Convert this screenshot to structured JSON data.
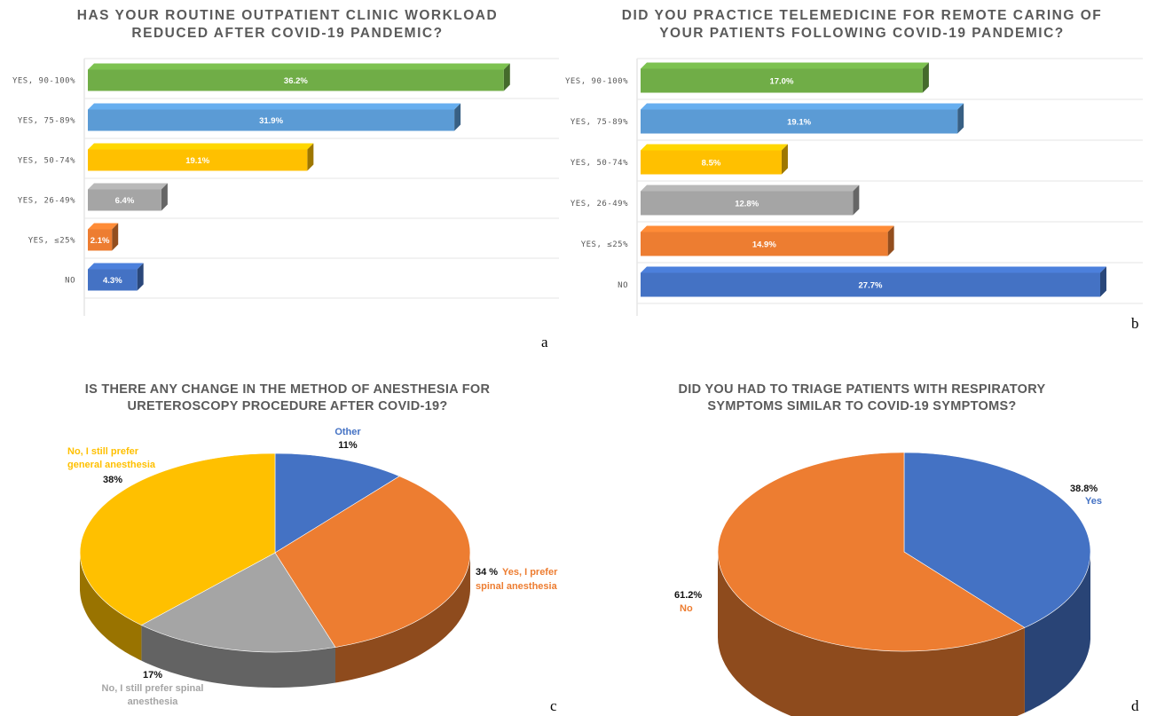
{
  "panels": {
    "a": "a",
    "b": "b",
    "c": "c",
    "d": "d"
  },
  "chart_data": [
    {
      "type": "bar",
      "orientation": "horizontal",
      "title_lines": [
        "HAS YOUR ROUTINE OUTPATIENT CLINIC WORKLOAD",
        "REDUCED AFTER COVID-19 PANDEMIC?"
      ],
      "categories": [
        "YES, 90-100%",
        "YES, 75-89%",
        "YES, 50-74%",
        "YES, 26-49%",
        "YES, ≤25%",
        "NO"
      ],
      "values": [
        36.2,
        31.9,
        19.1,
        6.4,
        2.1,
        4.3
      ],
      "value_labels": [
        "36.2%",
        "31.9%",
        "19.1%",
        "6.4%",
        "2.1%",
        "4.3%"
      ],
      "colors": [
        "#70ad47",
        "#5b9bd5",
        "#ffc000",
        "#a5a5a5",
        "#ed7d31",
        "#4472c4"
      ],
      "xlim": [
        0,
        40
      ],
      "grid": true,
      "legend": "none"
    },
    {
      "type": "bar",
      "orientation": "horizontal",
      "title_lines": [
        "DID YOU PRACTICE TELEMEDICINE FOR REMOTE CARING OF",
        "YOUR PATIENTS FOLLOWING COVID-19 PANDEMIC?"
      ],
      "categories": [
        "YES, 90-100%",
        "YES, 75-89%",
        "YES, 50-74%",
        "YES, 26-49%",
        "YES, ≤25%",
        "NO"
      ],
      "values": [
        17.0,
        19.1,
        8.5,
        12.8,
        14.9,
        27.7
      ],
      "value_labels": [
        "17.0%",
        "19.1%",
        "8.5%",
        "12.8%",
        "14.9%",
        "27.7%"
      ],
      "colors": [
        "#70ad47",
        "#5b9bd5",
        "#ffc000",
        "#a5a5a5",
        "#ed7d31",
        "#4472c4"
      ],
      "xlim": [
        0,
        30
      ],
      "grid": true,
      "legend": "none"
    },
    {
      "type": "pie",
      "title_lines": [
        "IS THERE ANY CHANGE IN THE METHOD OF ANESTHESIA FOR",
        "URETEROSCOPY PROCEDURE AFTER COVID-19?"
      ],
      "slices": [
        {
          "name_lines": [
            "Other"
          ],
          "value": 11,
          "value_label": "11%",
          "color": "#4472c4"
        },
        {
          "name_lines": [
            "Yes, I prefer",
            "spinal anesthesia"
          ],
          "value": 34,
          "value_label": "34 %",
          "color": "#ed7d31"
        },
        {
          "name_lines": [
            "No, I still prefer spinal",
            "anesthesia"
          ],
          "value": 17,
          "value_label": "17%",
          "color": "#a5a5a5"
        },
        {
          "name_lines": [
            "No, I still prefer",
            "general anesthesia"
          ],
          "value": 38,
          "value_label": "38%",
          "color": "#ffc000"
        }
      ],
      "legend": "none"
    },
    {
      "type": "pie",
      "title_lines": [
        "DID YOU HAD TO TRIAGE PATIENTS WITH RESPIRATORY",
        "SYMPTOMS SIMILAR TO COVID-19 SYMPTOMS?"
      ],
      "slices": [
        {
          "name_lines": [
            "Yes"
          ],
          "value": 38.8,
          "value_label": "38.8%",
          "color": "#4472c4"
        },
        {
          "name_lines": [
            "No"
          ],
          "value": 61.2,
          "value_label": "61.2%",
          "color": "#ed7d31"
        }
      ],
      "legend": "none"
    }
  ]
}
